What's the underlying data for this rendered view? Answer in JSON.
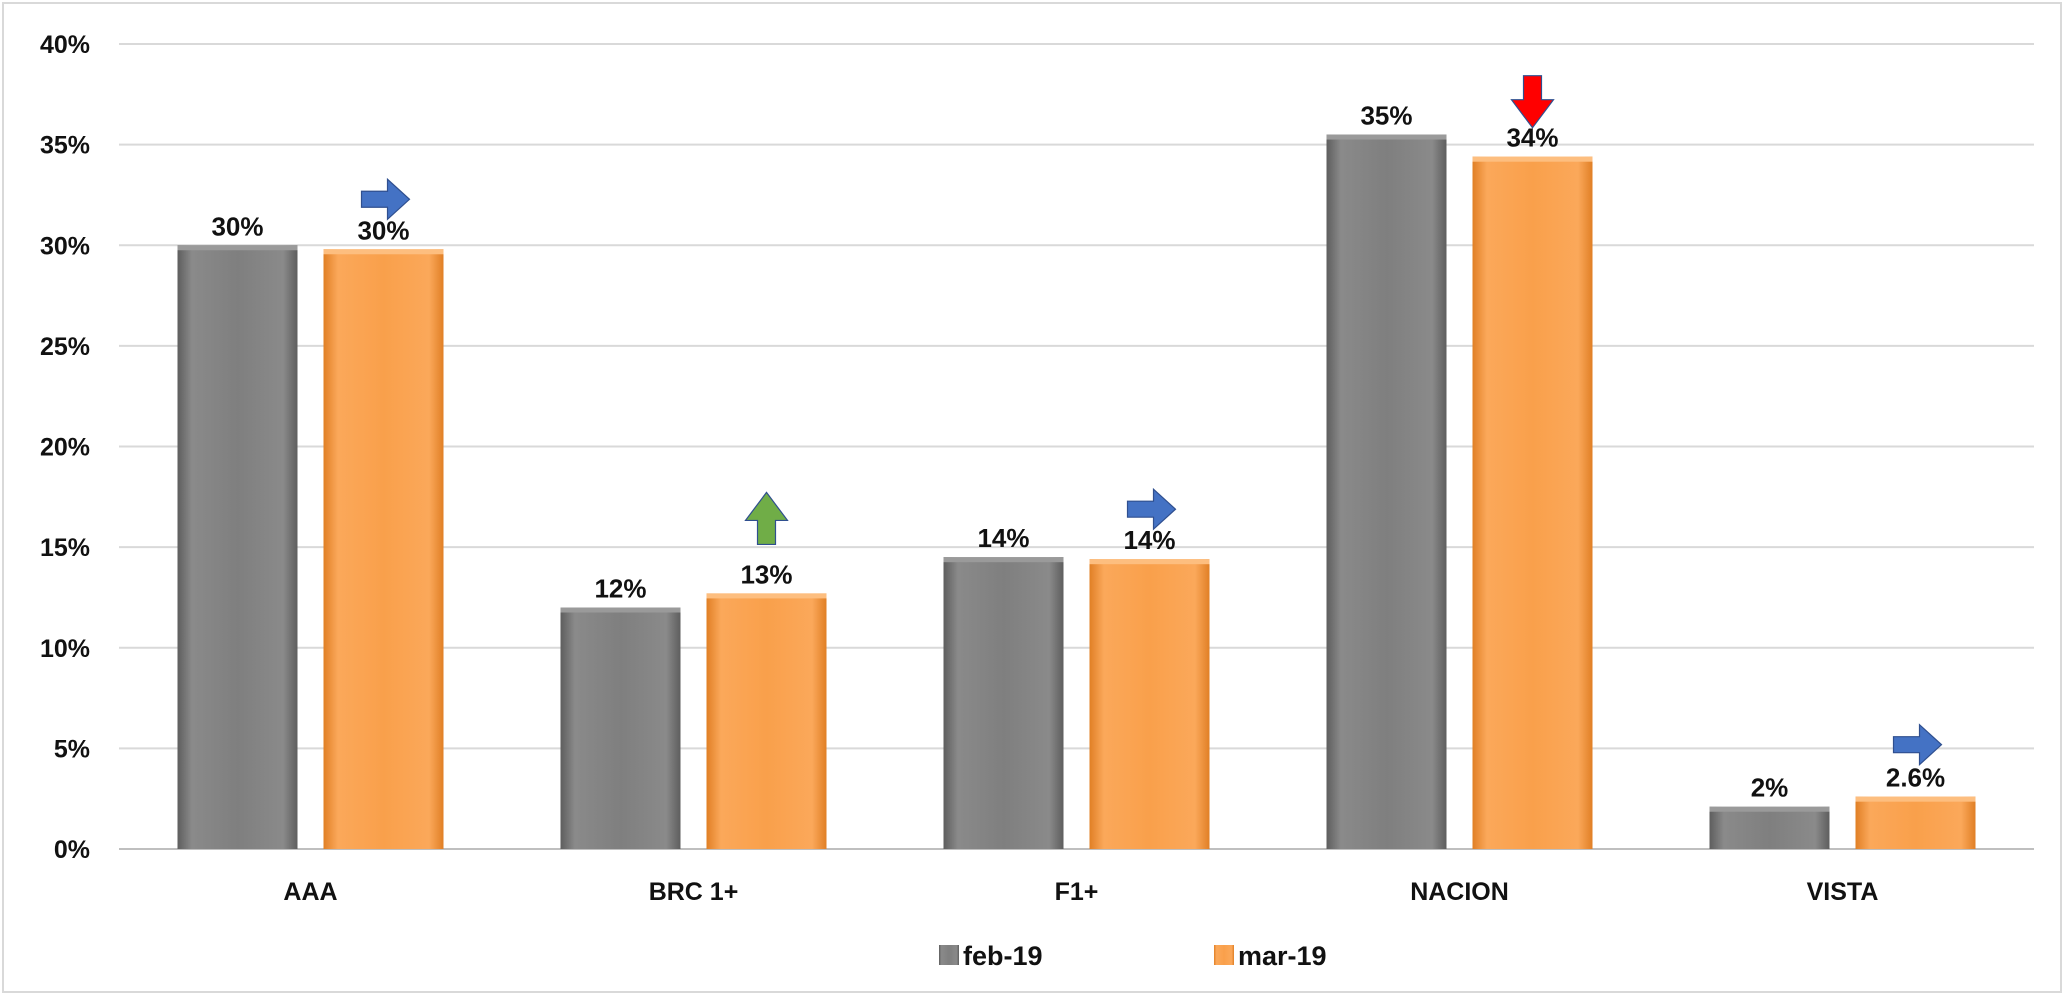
{
  "chart_data": {
    "type": "bar",
    "categories": [
      "AAA",
      "BRC 1+",
      "F1+",
      "NACION",
      "VISTA"
    ],
    "series": [
      {
        "name": "feb-19",
        "color": "#7f7f7f",
        "values": [
          0.3,
          0.12,
          0.145,
          0.355,
          0.021
        ],
        "labels": [
          "30%",
          "12%",
          "14%",
          "35%",
          "2%"
        ]
      },
      {
        "name": "mar-19",
        "color": "#f9a04b",
        "values": [
          0.298,
          0.127,
          0.144,
          0.344,
          0.026
        ],
        "labels": [
          "30%",
          "13%",
          "14%",
          "34%",
          "2.6%"
        ]
      }
    ],
    "ylim": [
      0,
      0.4
    ],
    "yticks": [
      "0%",
      "5%",
      "10%",
      "15%",
      "20%",
      "25%",
      "30%",
      "35%",
      "40%"
    ],
    "grid": true,
    "legend_position": "bottom",
    "trend_arrows": [
      {
        "category": "AAA",
        "direction": "right",
        "color": "#4472c4"
      },
      {
        "category": "BRC 1+",
        "direction": "up",
        "color": "#70ad47"
      },
      {
        "category": "F1+",
        "direction": "right",
        "color": "#4472c4"
      },
      {
        "category": "NACION",
        "direction": "down",
        "color": "#ff0000"
      },
      {
        "category": "VISTA",
        "direction": "right",
        "color": "#4472c4"
      }
    ]
  }
}
